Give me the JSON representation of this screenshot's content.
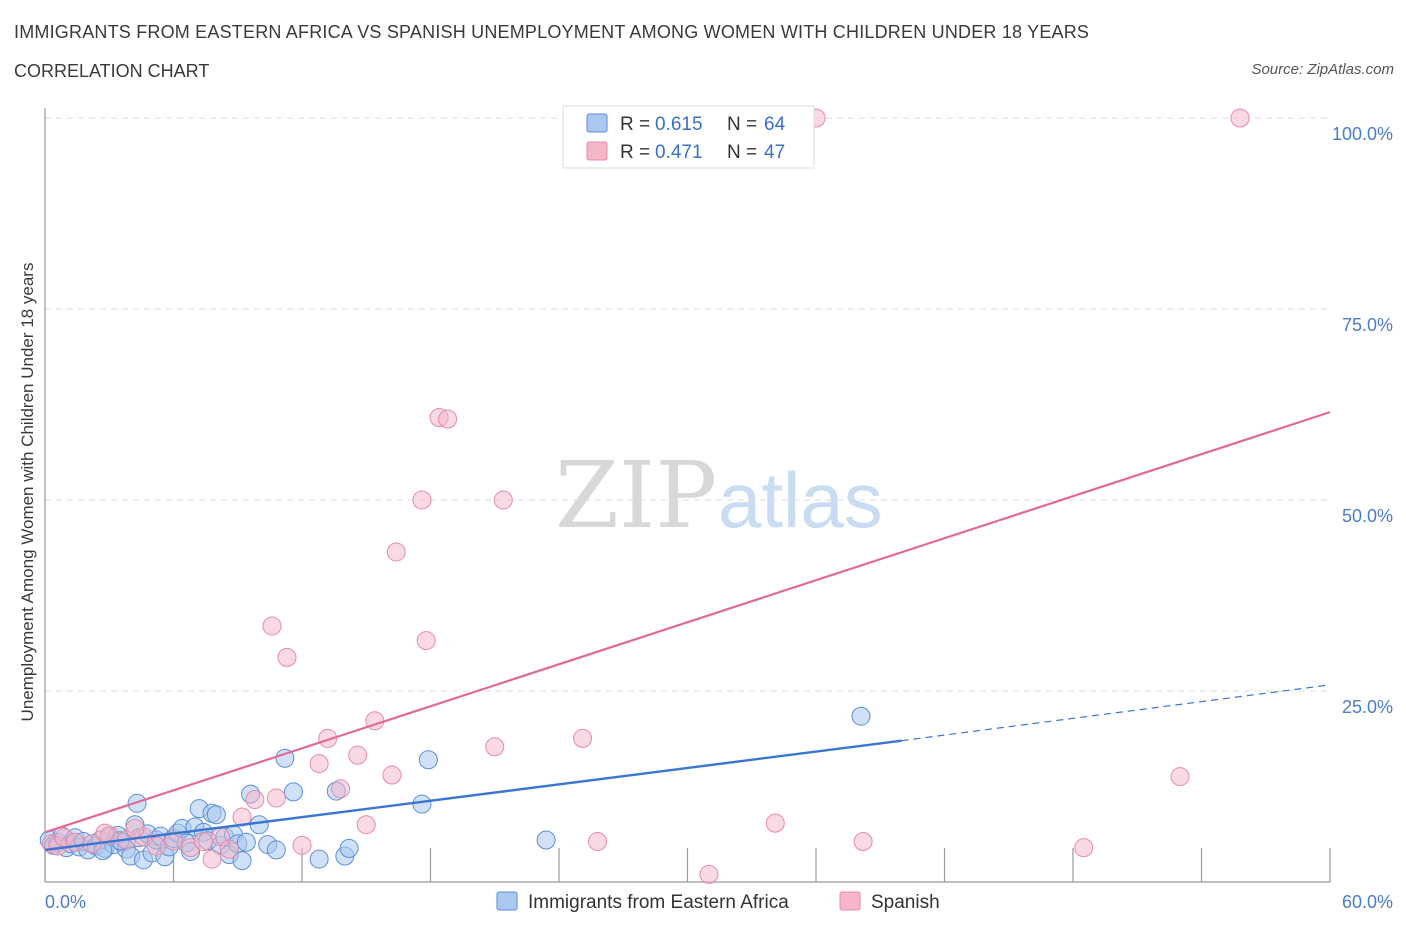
{
  "header": {
    "title": "IMMIGRANTS FROM EASTERN AFRICA VS SPANISH UNEMPLOYMENT AMONG WOMEN WITH CHILDREN UNDER 18 YEARS",
    "subtitle": "CORRELATION CHART",
    "source": "Source: ZipAtlas.com"
  },
  "watermark": {
    "zip": "ZIP",
    "atlas": "atlas"
  },
  "legend": {
    "r_label": "R =",
    "n_label": "N =",
    "rows": [
      {
        "r": "0.615",
        "n": "64"
      },
      {
        "r": "0.471",
        "n": "47"
      }
    ]
  },
  "colors": {
    "series1_fill": "#aac8f0",
    "series1_stroke": "#5a8fd6",
    "series1_line": "#3a76d0",
    "series2_fill": "#f4b6c8",
    "series2_stroke": "#e88aa8",
    "series2_line": "#e06a94",
    "tick_color": "#4a7cc7"
  },
  "chart_data": {
    "type": "scatter",
    "title": "IMMIGRANTS FROM EASTERN AFRICA VS SPANISH UNEMPLOYMENT AMONG WOMEN WITH CHILDREN UNDER 18 YEARS",
    "xlabel": "",
    "ylabel": "Unemployment Among Women with Children Under 18 years",
    "xlim": [
      0,
      60
    ],
    "ylim": [
      0,
      100
    ],
    "x_tick_labels": [
      "0.0%",
      "60.0%"
    ],
    "y_ticks": [
      25,
      50,
      75,
      100
    ],
    "y_tick_labels": [
      "25.0%",
      "50.0%",
      "75.0%",
      "100.0%"
    ],
    "grid": true,
    "legend_position": "bottom",
    "series": [
      {
        "name": "Immigrants from Eastern Africa",
        "points": [
          [
            0.2,
            5.5
          ],
          [
            0.4,
            4.8
          ],
          [
            0.6,
            5.2
          ],
          [
            0.8,
            6.0
          ],
          [
            1.0,
            4.5
          ],
          [
            1.2,
            5.0
          ],
          [
            1.4,
            5.8
          ],
          [
            1.6,
            4.6
          ],
          [
            1.8,
            5.3
          ],
          [
            2.0,
            4.2
          ],
          [
            2.2,
            5.0
          ],
          [
            2.4,
            4.7
          ],
          [
            2.6,
            5.5
          ],
          [
            2.8,
            4.4
          ],
          [
            3.0,
            5.9
          ],
          [
            3.2,
            4.9
          ],
          [
            3.4,
            6.1
          ],
          [
            3.6,
            5.2
          ],
          [
            3.8,
            4.3
          ],
          [
            4.0,
            3.4
          ],
          [
            4.2,
            7.5
          ],
          [
            4.4,
            5.8
          ],
          [
            4.6,
            2.9
          ],
          [
            4.8,
            6.3
          ],
          [
            5.0,
            3.8
          ],
          [
            5.2,
            5.5
          ],
          [
            5.4,
            6.0
          ],
          [
            5.6,
            3.3
          ],
          [
            5.8,
            4.6
          ],
          [
            6.0,
            5.7
          ],
          [
            6.2,
            6.4
          ],
          [
            6.4,
            7.0
          ],
          [
            6.6,
            5.1
          ],
          [
            6.8,
            4.0
          ],
          [
            7.0,
            7.2
          ],
          [
            7.2,
            9.6
          ],
          [
            7.4,
            6.5
          ],
          [
            7.6,
            5.4
          ],
          [
            7.8,
            9.0
          ],
          [
            8.0,
            8.8
          ],
          [
            8.2,
            4.8
          ],
          [
            8.4,
            5.9
          ],
          [
            8.6,
            3.6
          ],
          [
            8.8,
            6.2
          ],
          [
            9.0,
            5.0
          ],
          [
            9.2,
            2.8
          ],
          [
            9.6,
            11.5
          ],
          [
            9.4,
            5.2
          ],
          [
            10.0,
            7.5
          ],
          [
            10.4,
            4.9
          ],
          [
            10.8,
            4.2
          ],
          [
            11.2,
            16.2
          ],
          [
            11.6,
            11.8
          ],
          [
            12.8,
            3.0
          ],
          [
            13.6,
            11.9
          ],
          [
            14.0,
            3.4
          ],
          [
            14.2,
            4.4
          ],
          [
            17.6,
            10.2
          ],
          [
            17.9,
            16.0
          ],
          [
            23.4,
            5.5
          ],
          [
            4.3,
            10.3
          ],
          [
            3.5,
            5.4
          ],
          [
            2.7,
            4.1
          ],
          [
            38.1,
            21.7
          ]
        ],
        "trend": {
          "x0": 0,
          "y0": 4.2,
          "x1": 40,
          "y1": 18.5,
          "dashed_to_x": 60,
          "dashed_to_y": 25.8
        }
      },
      {
        "name": "Spanish",
        "points": [
          [
            0.3,
            5.0
          ],
          [
            0.6,
            4.7
          ],
          [
            0.9,
            5.8
          ],
          [
            1.4,
            5.2
          ],
          [
            2.2,
            5.0
          ],
          [
            3.0,
            6.1
          ],
          [
            3.8,
            5.5
          ],
          [
            4.6,
            5.9
          ],
          [
            5.2,
            4.7
          ],
          [
            6.0,
            5.4
          ],
          [
            6.8,
            4.5
          ],
          [
            7.4,
            5.3
          ],
          [
            8.2,
            5.9
          ],
          [
            8.6,
            4.3
          ],
          [
            9.2,
            8.5
          ],
          [
            9.8,
            10.8
          ],
          [
            10.6,
            33.5
          ],
          [
            10.8,
            11.0
          ],
          [
            11.3,
            29.4
          ],
          [
            12.8,
            15.5
          ],
          [
            13.2,
            18.8
          ],
          [
            13.8,
            12.2
          ],
          [
            14.6,
            16.6
          ],
          [
            15.0,
            7.5
          ],
          [
            15.4,
            21.1
          ],
          [
            16.2,
            14.0
          ],
          [
            16.4,
            43.2
          ],
          [
            17.6,
            50.0
          ],
          [
            17.8,
            31.6
          ],
          [
            18.4,
            60.8
          ],
          [
            18.8,
            60.6
          ],
          [
            21.0,
            17.7
          ],
          [
            21.4,
            50.0
          ],
          [
            25.1,
            18.8
          ],
          [
            25.8,
            5.3
          ],
          [
            27.8,
            100.0
          ],
          [
            31.0,
            1.0
          ],
          [
            34.1,
            7.7
          ],
          [
            36.0,
            100.0
          ],
          [
            38.2,
            5.3
          ],
          [
            48.5,
            4.5
          ],
          [
            53.0,
            13.8
          ],
          [
            55.8,
            100.0
          ],
          [
            12.0,
            4.8
          ],
          [
            7.8,
            3.0
          ],
          [
            4.2,
            7.0
          ],
          [
            2.8,
            6.4
          ]
        ],
        "trend": {
          "x0": 0,
          "y0": 6.5,
          "x1": 60,
          "y1": 61.5
        }
      }
    ]
  }
}
